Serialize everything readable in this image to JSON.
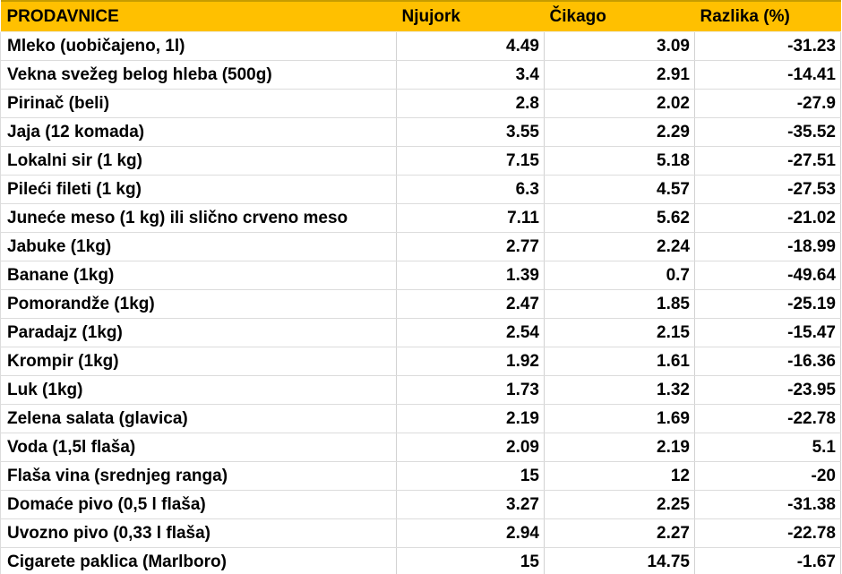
{
  "colors": {
    "header_bg": "#FFC000",
    "header_top_edge": "#C79C00",
    "grid_line": "#D6D6D6",
    "row_bg": "#FFFFFF",
    "text": "#000000"
  },
  "table": {
    "columns": [
      "PRODAVNICE",
      "Njujork",
      "Čikago",
      "Razlika (%)"
    ],
    "rows": [
      {
        "item": "Mleko (uobičajeno, 1l)",
        "njujork": "4.49",
        "cikago": "3.09",
        "razlika": "-31.23"
      },
      {
        "item": "Vekna svežeg belog hleba (500g)",
        "njujork": "3.4",
        "cikago": "2.91",
        "razlika": "-14.41"
      },
      {
        "item": "Pirinač (beli)",
        "njujork": "2.8",
        "cikago": "2.02",
        "razlika": "-27.9"
      },
      {
        "item": "Jaja (12 komada)",
        "njujork": "3.55",
        "cikago": "2.29",
        "razlika": "-35.52"
      },
      {
        "item": "Lokalni sir (1 kg)",
        "njujork": "7.15",
        "cikago": "5.18",
        "razlika": "-27.51"
      },
      {
        "item": "Pileći fileti (1 kg)",
        "njujork": "6.3",
        "cikago": "4.57",
        "razlika": "-27.53"
      },
      {
        "item": "Juneće meso (1 kg) ili slično crveno meso",
        "njujork": "7.11",
        "cikago": "5.62",
        "razlika": "-21.02"
      },
      {
        "item": "Jabuke (1kg)",
        "njujork": "2.77",
        "cikago": "2.24",
        "razlika": "-18.99"
      },
      {
        "item": "Banane (1kg)",
        "njujork": "1.39",
        "cikago": "0.7",
        "razlika": "-49.64"
      },
      {
        "item": "Pomorandže (1kg)",
        "njujork": "2.47",
        "cikago": "1.85",
        "razlika": "-25.19"
      },
      {
        "item": "Paradajz (1kg)",
        "njujork": "2.54",
        "cikago": "2.15",
        "razlika": "-15.47"
      },
      {
        "item": "Krompir (1kg)",
        "njujork": "1.92",
        "cikago": "1.61",
        "razlika": "-16.36"
      },
      {
        "item": "Luk (1kg)",
        "njujork": "1.73",
        "cikago": "1.32",
        "razlika": "-23.95"
      },
      {
        "item": "Zelena salata (glavica)",
        "njujork": "2.19",
        "cikago": "1.69",
        "razlika": "-22.78"
      },
      {
        "item": "Voda (1,5l flaša)",
        "njujork": "2.09",
        "cikago": "2.19",
        "razlika": "5.1"
      },
      {
        "item": "Flaša vina (srednjeg ranga)",
        "njujork": "15",
        "cikago": "12",
        "razlika": "-20"
      },
      {
        "item": "Domaće pivo (0,5 l flaša)",
        "njujork": "3.27",
        "cikago": "2.25",
        "razlika": "-31.38"
      },
      {
        "item": "Uvozno pivo (0,33 l flaša)",
        "njujork": "2.94",
        "cikago": "2.27",
        "razlika": "-22.78"
      },
      {
        "item": "Cigarete paklica (Marlboro)",
        "njujork": "15",
        "cikago": "14.75",
        "razlika": "-1.67"
      }
    ]
  },
  "chart_data": {
    "type": "table",
    "title": "PRODAVNICE",
    "columns": [
      "PRODAVNICE",
      "Njujork",
      "Čikago",
      "Razlika (%)"
    ],
    "rows": [
      [
        "Mleko (uobičajeno, 1l)",
        4.49,
        3.09,
        -31.23
      ],
      [
        "Vekna svežeg belog hleba (500g)",
        3.4,
        2.91,
        -14.41
      ],
      [
        "Pirinač (beli)",
        2.8,
        2.02,
        -27.9
      ],
      [
        "Jaja (12 komada)",
        3.55,
        2.29,
        -35.52
      ],
      [
        "Lokalni sir (1 kg)",
        7.15,
        5.18,
        -27.51
      ],
      [
        "Pileći fileti (1 kg)",
        6.3,
        4.57,
        -27.53
      ],
      [
        "Juneće meso (1 kg) ili slično crveno meso",
        7.11,
        5.62,
        -21.02
      ],
      [
        "Jabuke (1kg)",
        2.77,
        2.24,
        -18.99
      ],
      [
        "Banane (1kg)",
        1.39,
        0.7,
        -49.64
      ],
      [
        "Pomorandže (1kg)",
        2.47,
        1.85,
        -25.19
      ],
      [
        "Paradajz (1kg)",
        2.54,
        2.15,
        -15.47
      ],
      [
        "Krompir (1kg)",
        1.92,
        1.61,
        -16.36
      ],
      [
        "Luk (1kg)",
        1.73,
        1.32,
        -23.95
      ],
      [
        "Zelena salata (glavica)",
        2.19,
        1.69,
        -22.78
      ],
      [
        "Voda (1,5l flaša)",
        2.09,
        2.19,
        5.1
      ],
      [
        "Flaša vina (srednjeg ranga)",
        15,
        12,
        -20
      ],
      [
        "Domaće pivo (0,5 l flaša)",
        3.27,
        2.25,
        -31.38
      ],
      [
        "Uvozno pivo (0,33 l flaša)",
        2.94,
        2.27,
        -22.78
      ],
      [
        "Cigarete paklica (Marlboro)",
        15,
        14.75,
        -1.67
      ]
    ]
  }
}
